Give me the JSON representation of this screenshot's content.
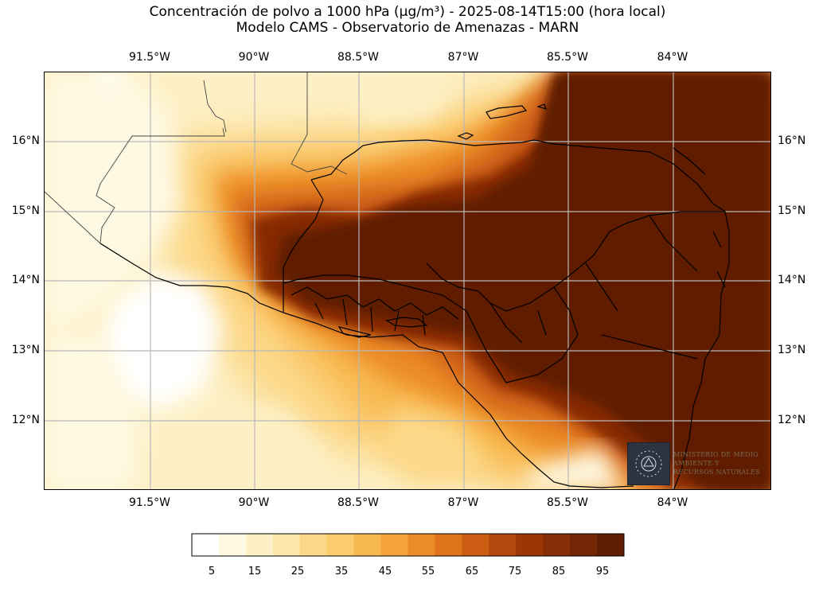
{
  "title_line1": "Concentración de polvo a 1000 hPa (µg/m³) - 2025-08-14T15:00 (hora local)",
  "title_line2": "Modelo CAMS - Observatorio de Amenazas - MARN",
  "lon_labels": [
    "91.5°W",
    "90°W",
    "88.5°W",
    "87°W",
    "85.5°W",
    "84°W"
  ],
  "lat_labels": [
    "16°N",
    "15°N",
    "14°N",
    "13°N",
    "12°N"
  ],
  "colorbar": {
    "ticks": [
      "5",
      "15",
      "25",
      "35",
      "45",
      "55",
      "65",
      "75",
      "85",
      "95"
    ],
    "colors": [
      "#ffffff",
      "#fef9e3",
      "#fdf0c6",
      "#fde6a8",
      "#fcd98a",
      "#fbcb6c",
      "#f8b850",
      "#f4a43a",
      "#ec8c28",
      "#df731c",
      "#cc5c12",
      "#b4470c",
      "#9b3707",
      "#862c06",
      "#732505",
      "#5f1e04"
    ]
  },
  "logo": {
    "icon": "ministry-seal-icon",
    "text": "Ministerio de Medio Ambiente y Recursos Naturales"
  }
}
